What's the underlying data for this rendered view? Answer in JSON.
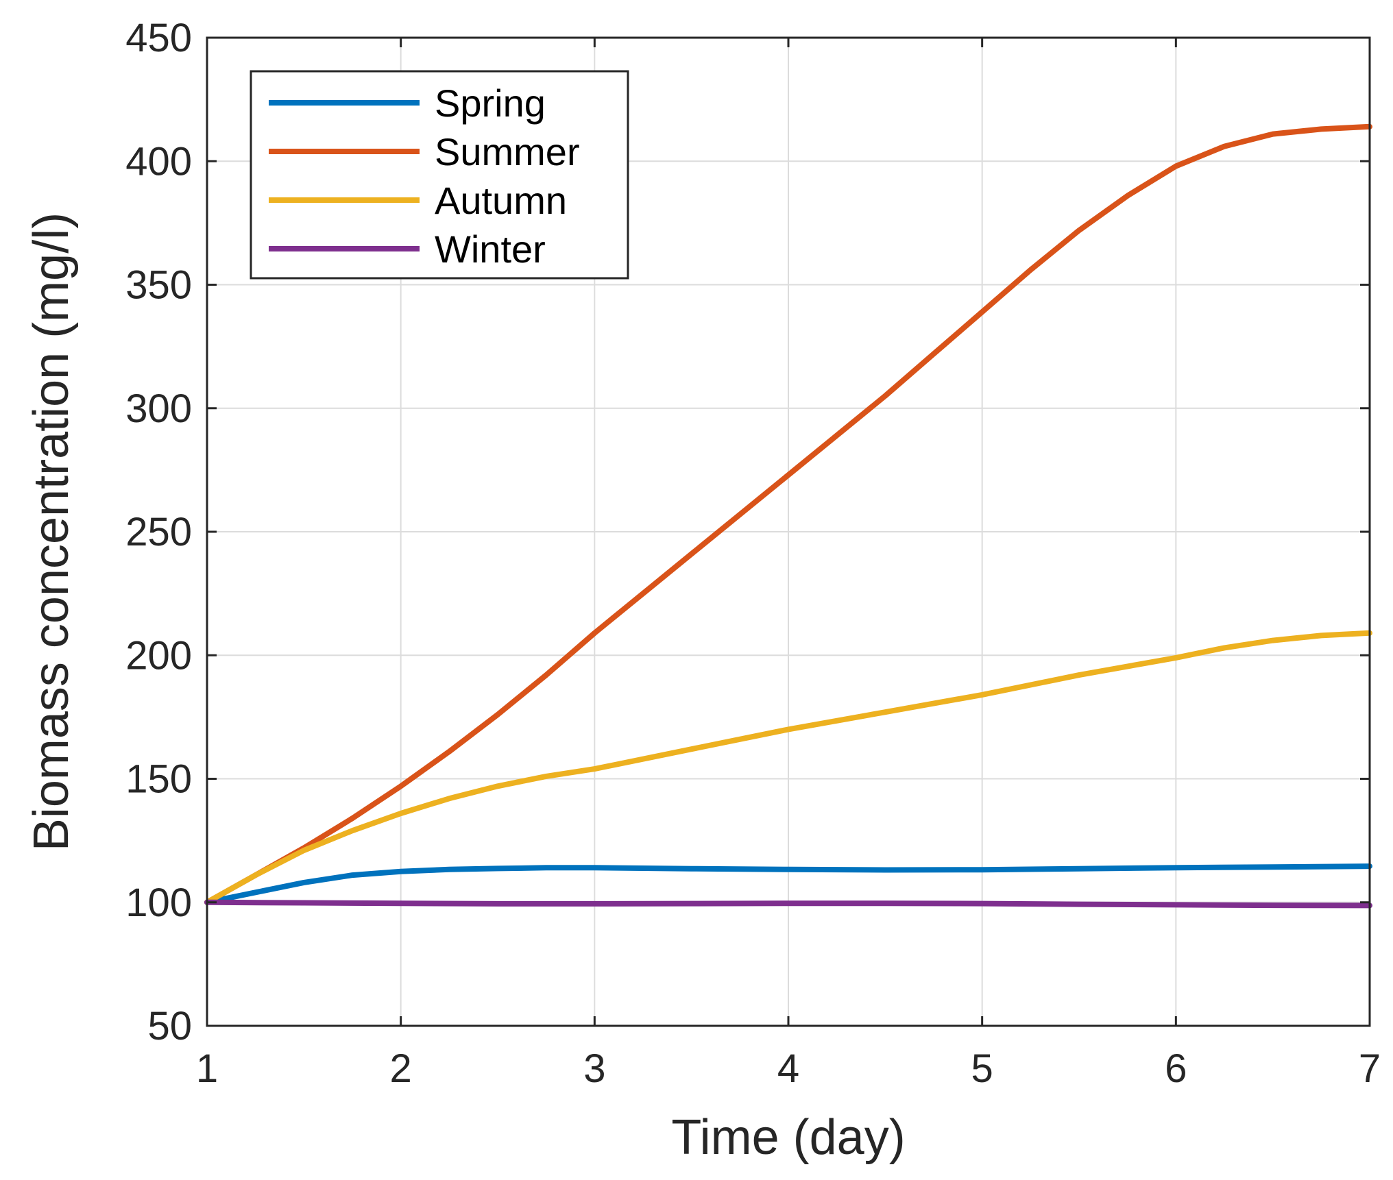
{
  "chart_data": {
    "type": "line",
    "xlabel": "Time (day)",
    "ylabel": "Biomass concentration (mg/l)",
    "xlim": [
      1,
      7
    ],
    "ylim": [
      50,
      450
    ],
    "xticks": [
      "1",
      "2",
      "3",
      "4",
      "5",
      "6",
      "7"
    ],
    "yticks": [
      "50",
      "100",
      "150",
      "200",
      "250",
      "300",
      "350",
      "400",
      "450"
    ],
    "grid": true,
    "legend_position": "top-left",
    "series": [
      {
        "name": "Spring",
        "color": "#0072BD",
        "x": [
          1,
          1.25,
          1.5,
          1.75,
          2,
          2.25,
          2.5,
          2.75,
          3,
          3.5,
          4,
          4.5,
          5,
          5.5,
          6,
          6.5,
          7
        ],
        "y": [
          100,
          104,
          108,
          111,
          112.5,
          113.3,
          113.7,
          114,
          114,
          113.6,
          113.3,
          113.1,
          113.2,
          113.6,
          114,
          114.3,
          114.6
        ]
      },
      {
        "name": "Summer",
        "color": "#D95319",
        "x": [
          1,
          1.25,
          1.5,
          1.75,
          2,
          2.25,
          2.5,
          2.75,
          3,
          3.25,
          3.5,
          3.75,
          4,
          4.25,
          4.5,
          4.75,
          5,
          5.25,
          5.5,
          5.75,
          6,
          6.25,
          6.5,
          6.75,
          7
        ],
        "y": [
          100,
          111,
          122,
          134,
          147,
          161,
          176,
          192,
          209,
          225,
          241,
          257,
          273,
          289,
          305,
          322,
          339,
          356,
          372,
          386,
          398,
          406,
          411,
          413,
          414
        ]
      },
      {
        "name": "Autumn",
        "color": "#EDB120",
        "x": [
          1,
          1.25,
          1.5,
          1.75,
          2,
          2.25,
          2.5,
          2.75,
          3,
          3.5,
          4,
          4.5,
          5,
          5.5,
          6,
          6.25,
          6.5,
          6.75,
          7
        ],
        "y": [
          100,
          111,
          121,
          129,
          136,
          142,
          147,
          151,
          154,
          162,
          170,
          177,
          184,
          192,
          199,
          203,
          206,
          208,
          209
        ]
      },
      {
        "name": "Winter",
        "color": "#7E2F8E",
        "x": [
          1,
          1.5,
          2,
          2.5,
          3,
          3.5,
          4,
          4.5,
          5,
          5.5,
          6,
          6.5,
          7
        ],
        "y": [
          100,
          99.8,
          99.6,
          99.4,
          99.4,
          99.5,
          99.6,
          99.6,
          99.5,
          99.2,
          99,
          98.8,
          98.7
        ]
      }
    ]
  }
}
